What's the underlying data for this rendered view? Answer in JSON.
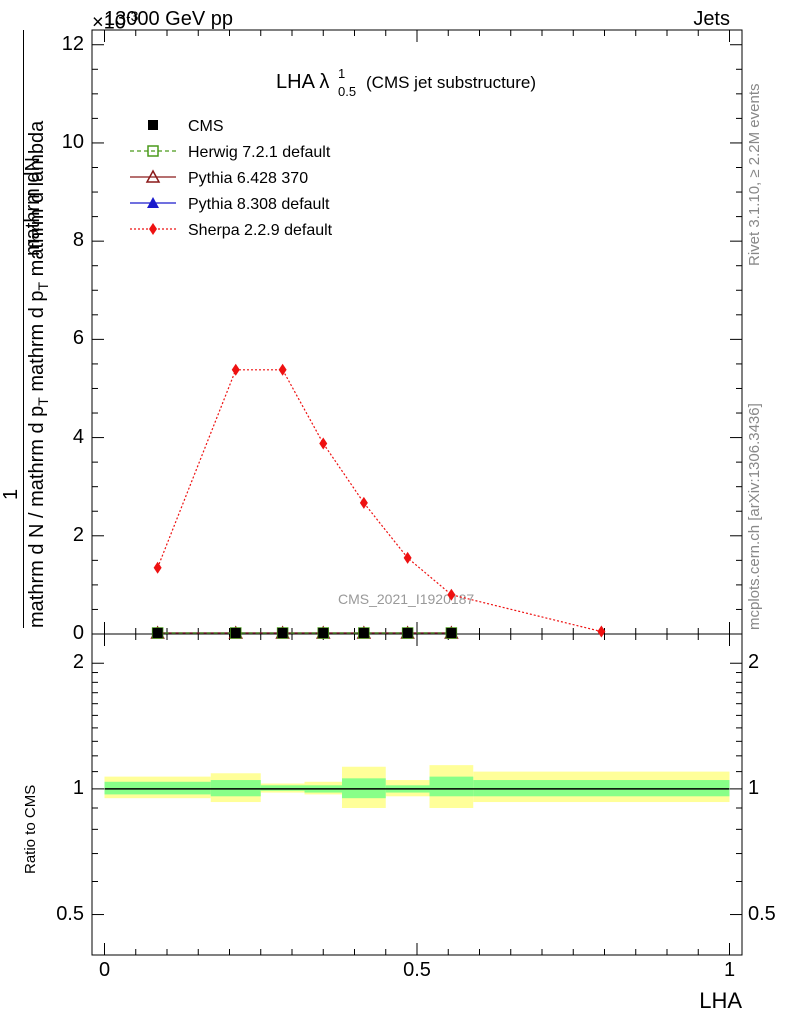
{
  "header": {
    "energy": "13000 GeV pp",
    "category": "Jets",
    "exponent": "×10",
    "exponent_power": "-3"
  },
  "sidebar": {
    "rivet": "Rivet 3.1.10, ≥ 2.2M events",
    "mcplots": "mcplots.cern.ch [arXiv:1306.3436]"
  },
  "chart_data": [
    {
      "type": "line",
      "title_main": "LHA λ",
      "title_sup": "1",
      "title_sub": "0.5",
      "title_note": "(CMS jet substructure)",
      "watermark": "CMS_2021_I1920187",
      "ylabel_numerator": "mathrm dN",
      "ylabel_numerator_prefix": "1",
      "ylabel_denominator": "mathrm d N / mathrm d p_T mathrm d p_T mathrm d lambda",
      "ylabel_lines": {
        "top_a": "mathrm d",
        "top_b": "N",
        "bottom": "mathrm d N / mathrm d p",
        "bottom_sub": "T",
        "bottom_rest": " mathrm d p",
        "bottom_sub2": "T",
        "bottom_rest2": " mathrm d lambda",
        "one": "1"
      },
      "ylim": [
        0,
        12.3
      ],
      "yticks": [
        "0",
        "2",
        "4",
        "6",
        "8",
        "10",
        "12"
      ],
      "xlim": [
        -0.02,
        1.02
      ],
      "legend_position": "top-left",
      "series": [
        {
          "name": "CMS",
          "color": "#000000",
          "marker": "square-filled",
          "line": "none",
          "x": [
            0.085,
            0.21,
            0.285,
            0.35,
            0.415,
            0.485,
            0.555
          ],
          "y": [
            0.02,
            0.02,
            0.02,
            0.02,
            0.02,
            0.02,
            0.02
          ]
        },
        {
          "name": "Herwig 7.2.1 default",
          "color": "#4a9a1a",
          "marker": "square-open",
          "line": "dashed",
          "x": [
            0.085,
            0.21,
            0.285,
            0.35,
            0.415,
            0.485,
            0.555
          ],
          "y": [
            0.02,
            0.02,
            0.02,
            0.02,
            0.02,
            0.02,
            0.02
          ]
        },
        {
          "name": "Pythia 6.428 370",
          "color": "#8b1a1a",
          "marker": "triangle-open",
          "line": "solid",
          "x": [
            0.085,
            0.21,
            0.285,
            0.35,
            0.415,
            0.485,
            0.555
          ],
          "y": [
            0.02,
            0.02,
            0.02,
            0.02,
            0.02,
            0.02,
            0.02
          ]
        },
        {
          "name": "Pythia 8.308 default",
          "color": "#1a1acc",
          "marker": "triangle-filled",
          "line": "solid",
          "x": [
            0.085,
            0.21,
            0.285,
            0.35,
            0.415,
            0.485,
            0.555
          ],
          "y": [
            0.02,
            0.02,
            0.02,
            0.02,
            0.02,
            0.02,
            0.02
          ]
        },
        {
          "name": "Sherpa 2.2.9 default",
          "color": "#ee1111",
          "marker": "diamond-filled",
          "line": "dotted",
          "x": [
            0.085,
            0.21,
            0.285,
            0.35,
            0.415,
            0.485,
            0.555,
            0.795
          ],
          "y": [
            1.35,
            5.38,
            5.38,
            3.88,
            2.67,
            1.55,
            0.8,
            0.05
          ]
        }
      ]
    },
    {
      "type": "area",
      "ylabel": "Ratio to CMS",
      "xlabel": "LHA",
      "log_scale_y": true,
      "ylim": [
        0.4,
        2.35
      ],
      "yticks": [
        "0.5",
        "1",
        "2"
      ],
      "xticks": [
        "0",
        "0.5",
        "1"
      ],
      "xlim": [
        -0.02,
        1.02
      ],
      "reference_line": 1,
      "colors": {
        "band_outer": "#ffff99",
        "band_inner": "#88ff88"
      },
      "bins": [
        {
          "lo": 0.0,
          "hi": 0.17,
          "outer": [
            0.95,
            1.07
          ],
          "inner": [
            0.97,
            1.04
          ]
        },
        {
          "lo": 0.17,
          "hi": 0.25,
          "outer": [
            0.93,
            1.09
          ],
          "inner": [
            0.96,
            1.05
          ]
        },
        {
          "lo": 0.25,
          "hi": 0.32,
          "outer": [
            0.98,
            1.03
          ],
          "inner": [
            0.99,
            1.02
          ]
        },
        {
          "lo": 0.32,
          "hi": 0.38,
          "outer": [
            0.97,
            1.04
          ],
          "inner": [
            0.98,
            1.02
          ]
        },
        {
          "lo": 0.38,
          "hi": 0.45,
          "outer": [
            0.9,
            1.13
          ],
          "inner": [
            0.95,
            1.06
          ]
        },
        {
          "lo": 0.45,
          "hi": 0.52,
          "outer": [
            0.96,
            1.05
          ],
          "inner": [
            0.98,
            1.02
          ]
        },
        {
          "lo": 0.52,
          "hi": 0.59,
          "outer": [
            0.9,
            1.14
          ],
          "inner": [
            0.96,
            1.07
          ]
        },
        {
          "lo": 0.59,
          "hi": 1.0,
          "outer": [
            0.93,
            1.1
          ],
          "inner": [
            0.96,
            1.05
          ]
        }
      ]
    }
  ]
}
